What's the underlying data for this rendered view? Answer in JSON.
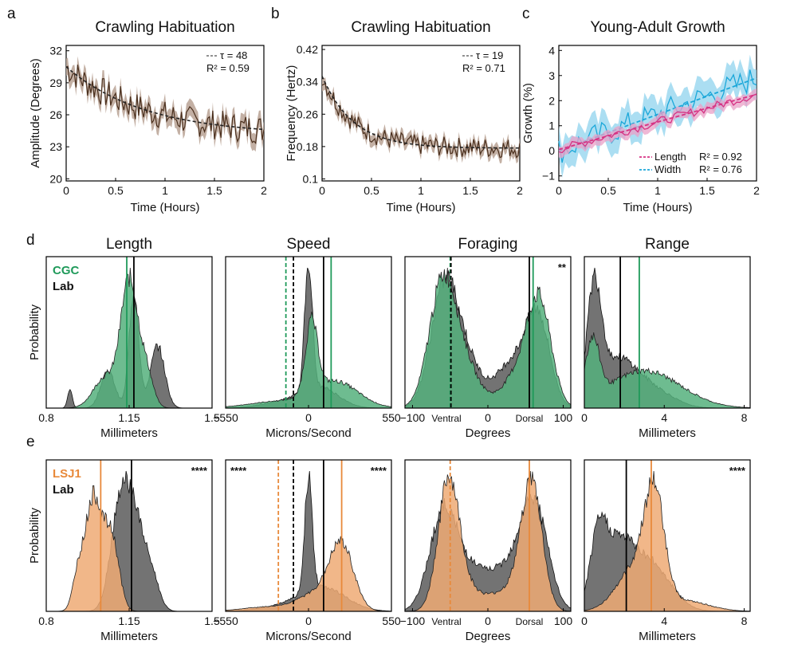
{
  "panel_letters": {
    "a": "a",
    "b": "b",
    "c": "c",
    "d": "d",
    "e": "e"
  },
  "colors": {
    "brown": "#4a2f1d",
    "brown_band": "#bca79a",
    "pink": "#d63384",
    "pink_band": "#e9a0c7",
    "cyan": "#1ba7d9",
    "cyan_band": "#8fd3ee",
    "green": "#1f9a5a",
    "green_fill": "#55b07d",
    "orange": "#e8893a",
    "orange_fill": "#eeaa74",
    "gray_fill": "#6b6b6b",
    "black": "#111111"
  },
  "chart_data": [
    {
      "id": "a",
      "type": "line",
      "title": "Crawling Habituation",
      "xlabel": "Time (Hours)",
      "ylabel": "Amplitude (Degrees)",
      "xlim": [
        0,
        2
      ],
      "ylim": [
        19.8,
        32.5
      ],
      "xticks": [
        "0",
        "0.5",
        "1",
        "1.5",
        "2"
      ],
      "xtick_values": [
        0,
        0.5,
        1,
        1.5,
        2
      ],
      "yticks": [
        "20",
        "23",
        "26",
        "29",
        "32"
      ],
      "ytick_values": [
        20,
        23,
        26,
        29,
        32
      ],
      "legend": [
        "τ = 48",
        "R² = 0.59"
      ],
      "fit": {
        "type": "exp",
        "a": 24.1,
        "b": 6.4,
        "tau_hours": 0.8
      },
      "series": {
        "noise_amp": 1.4,
        "band": 0.8,
        "n": 120
      }
    },
    {
      "id": "b",
      "type": "line",
      "title": "Crawling Habituation",
      "xlabel": "Time (Hours)",
      "ylabel": "Frequency (Hertz)",
      "xlim": [
        0,
        2
      ],
      "ylim": [
        0.095,
        0.43
      ],
      "xticks": [
        "0",
        "0.5",
        "1",
        "1.5",
        "2"
      ],
      "xtick_values": [
        0,
        0.5,
        1,
        1.5,
        2
      ],
      "yticks": [
        "0.1",
        "0.18",
        "0.26",
        "0.34",
        "0.42"
      ],
      "ytick_values": [
        0.1,
        0.18,
        0.26,
        0.34,
        0.42
      ],
      "legend": [
        "τ = 19",
        "R² = 0.71"
      ],
      "fit": {
        "type": "exp",
        "a": 0.176,
        "b": 0.178,
        "tau_hours": 0.317
      },
      "series": {
        "noise_amp": 0.025,
        "band": 0.015,
        "n": 120
      }
    },
    {
      "id": "c",
      "type": "line",
      "title": "Young-Adult Growth",
      "xlabel": "Time (Hours)",
      "ylabel": "Growth (%)",
      "xlim": [
        0,
        2
      ],
      "ylim": [
        -1.2,
        4.2
      ],
      "xticks": [
        "0",
        "0.5",
        "1",
        "1.5",
        "2"
      ],
      "xtick_values": [
        0,
        0.5,
        1,
        1.5,
        2
      ],
      "yticks": [
        "−1",
        "0",
        "1",
        "2",
        "3",
        "4"
      ],
      "ytick_values": [
        -1,
        0,
        1,
        2,
        3,
        4
      ],
      "series": [
        {
          "name": "Length",
          "r2": "R² = 0.92",
          "slope": 1.1,
          "intercept": 0.05,
          "noise_amp": 0.18,
          "band": 0.22
        },
        {
          "name": "Width",
          "r2": "R² = 0.76",
          "slope": 1.45,
          "intercept": 0.0,
          "noise_amp": 0.55,
          "band": 0.6
        }
      ]
    },
    {
      "id": "d",
      "type": "area",
      "row_label": "d",
      "ylabel": "Probability",
      "legend": [
        "CGC",
        "Lab"
      ],
      "panels": [
        {
          "title": "Length",
          "xlabel": "Millimeters",
          "xlim": [
            0.8,
            1.5
          ],
          "xticks": [
            "0.8",
            "1.15",
            "1.5"
          ],
          "xtick_values": [
            0.8,
            1.15,
            1.5
          ],
          "a_peaks": [
            [
              1.15,
              0.035,
              1.0
            ],
            [
              1.05,
              0.05,
              0.25
            ],
            [
              1.22,
              0.03,
              0.3
            ]
          ],
          "b_peaks": [
            [
              1.17,
              0.02,
              0.95
            ],
            [
              1.27,
              0.03,
              0.5
            ],
            [
              1.06,
              0.03,
              0.3
            ],
            [
              0.9,
              0.01,
              0.15
            ]
          ],
          "vlines": [
            {
              "x": 1.14,
              "who": "a",
              "dash": false
            },
            {
              "x": 1.17,
              "who": "b",
              "dash": false
            }
          ],
          "stars": ""
        },
        {
          "title": "Speed",
          "xlabel": "Microns/Second",
          "xlim": [
            -550,
            550
          ],
          "xticks": [
            "−550",
            "0",
            "550"
          ],
          "xtick_values": [
            -550,
            0,
            550
          ],
          "a_peaks": [
            [
              20,
              40,
              0.55
            ],
            [
              180,
              150,
              0.2
            ],
            [
              -200,
              200,
              0.05
            ]
          ],
          "b_peaks": [
            [
              0,
              25,
              1.0
            ],
            [
              80,
              120,
              0.15
            ],
            [
              -150,
              150,
              0.05
            ]
          ],
          "vlines": [
            {
              "x": -150,
              "who": "a",
              "dash": true
            },
            {
              "x": -100,
              "who": "b",
              "dash": true
            },
            {
              "x": 100,
              "who": "b",
              "dash": false
            },
            {
              "x": 150,
              "who": "a",
              "dash": false
            }
          ],
          "stars": ""
        },
        {
          "title": "Foraging",
          "xlabel": "Degrees",
          "xlim": [
            -110,
            110
          ],
          "xticks": [
            "−100",
            "0",
            "100"
          ],
          "xtick_values": [
            -100,
            0,
            100
          ],
          "side_labels": [
            "Ventral",
            "Dorsal"
          ],
          "a_peaks": [
            [
              -60,
              18,
              1.0
            ],
            [
              -30,
              20,
              0.3
            ],
            [
              68,
              16,
              0.85
            ],
            [
              38,
              20,
              0.25
            ]
          ],
          "b_peaks": [
            [
              -58,
              18,
              0.95
            ],
            [
              -28,
              20,
              0.35
            ],
            [
              66,
              16,
              0.75
            ],
            [
              30,
              20,
              0.35
            ]
          ],
          "vlines": [
            {
              "x": -50,
              "who": "a",
              "dash": true
            },
            {
              "x": -49,
              "who": "b",
              "dash": true
            },
            {
              "x": 55,
              "who": "b",
              "dash": false
            },
            {
              "x": 60,
              "who": "a",
              "dash": false
            }
          ],
          "stars": "**"
        },
        {
          "title": "Range",
          "xlabel": "Millimeters",
          "xlim": [
            0,
            8.3
          ],
          "xticks": [
            "0",
            "4",
            "8"
          ],
          "xtick_values": [
            0,
            4,
            8
          ],
          "a_peaks": [
            [
              0.4,
              0.35,
              0.55
            ],
            [
              3.0,
              1.8,
              0.35
            ]
          ],
          "b_peaks": [
            [
              0.5,
              0.35,
              1.0
            ],
            [
              1.6,
              1.0,
              0.45
            ],
            [
              3.5,
              1.0,
              0.15
            ]
          ],
          "vlines": [
            {
              "x": 1.8,
              "who": "b",
              "dash": false
            },
            {
              "x": 2.75,
              "who": "a",
              "dash": false
            }
          ],
          "stars": ""
        }
      ]
    },
    {
      "id": "e",
      "type": "area",
      "row_label": "e",
      "ylabel": "Probability",
      "legend": [
        "LSJ1",
        "Lab"
      ],
      "panels": [
        {
          "title": "",
          "xlabel": "Millimeters",
          "xlim": [
            0.8,
            1.5
          ],
          "xticks": [
            "0.8",
            "1.15",
            "1.5"
          ],
          "xtick_values": [
            0.8,
            1.15,
            1.5
          ],
          "a_peaks": [
            [
              1.0,
              0.04,
              1.0
            ],
            [
              1.08,
              0.03,
              0.55
            ],
            [
              0.93,
              0.02,
              0.2
            ]
          ],
          "b_peaks": [
            [
              1.16,
              0.05,
              0.95
            ],
            [
              1.1,
              0.035,
              0.5
            ],
            [
              1.25,
              0.03,
              0.2
            ]
          ],
          "vlines": [
            {
              "x": 1.03,
              "who": "a",
              "dash": false
            },
            {
              "x": 1.16,
              "who": "b",
              "dash": false
            }
          ],
          "stars": "****"
        },
        {
          "title": "",
          "xlabel": "Microns/Second",
          "xlim": [
            -550,
            550
          ],
          "xticks": [
            "−550",
            "0",
            "550"
          ],
          "xtick_values": [
            -550,
            0,
            550
          ],
          "a_peaks": [
            [
              220,
              80,
              0.55
            ],
            [
              60,
              120,
              0.15
            ],
            [
              -250,
              180,
              0.04
            ]
          ],
          "b_peaks": [
            [
              0,
              25,
              1.0
            ],
            [
              100,
              150,
              0.2
            ],
            [
              -150,
              170,
              0.04
            ]
          ],
          "vlines": [
            {
              "x": -200,
              "who": "a",
              "dash": true
            },
            {
              "x": -100,
              "who": "b",
              "dash": true
            },
            {
              "x": 100,
              "who": "b",
              "dash": false
            },
            {
              "x": 220,
              "who": "a",
              "dash": false
            }
          ],
          "stars": "****",
          "stars_left": "****"
        },
        {
          "title": "",
          "xlabel": "Degrees",
          "xlim": [
            -110,
            110
          ],
          "xticks": [
            "−100",
            "0",
            "100"
          ],
          "xtick_values": [
            -100,
            0,
            100
          ],
          "side_labels": [
            "Ventral",
            "Dorsal"
          ],
          "a_peaks": [
            [
              -52,
              14,
              1.0
            ],
            [
              58,
              14,
              1.0
            ],
            [
              -25,
              20,
              0.15
            ],
            [
              25,
              20,
              0.15
            ]
          ],
          "b_peaks": [
            [
              -60,
              18,
              0.7
            ],
            [
              62,
              18,
              0.75
            ],
            [
              -25,
              25,
              0.3
            ],
            [
              30,
              25,
              0.3
            ]
          ],
          "vlines": [
            {
              "x": -50,
              "who": "a",
              "dash": true
            },
            {
              "x": 55,
              "who": "a",
              "dash": false
            }
          ],
          "stars": ""
        },
        {
          "title": "",
          "xlabel": "Millimeters",
          "xlim": [
            0,
            8.3
          ],
          "xticks": [
            "0",
            "4",
            "8"
          ],
          "xtick_values": [
            0,
            4,
            8
          ],
          "a_peaks": [
            [
              3.5,
              0.5,
              1.0
            ],
            [
              2.5,
              0.9,
              0.4
            ],
            [
              5.0,
              1.2,
              0.1
            ]
          ],
          "b_peaks": [
            [
              0.7,
              0.4,
              0.55
            ],
            [
              1.6,
              0.8,
              0.6
            ],
            [
              3.3,
              1.0,
              0.45
            ]
          ],
          "vlines": [
            {
              "x": 2.1,
              "who": "b",
              "dash": false
            },
            {
              "x": 3.35,
              "who": "a",
              "dash": false
            }
          ],
          "stars": "****"
        }
      ]
    }
  ]
}
